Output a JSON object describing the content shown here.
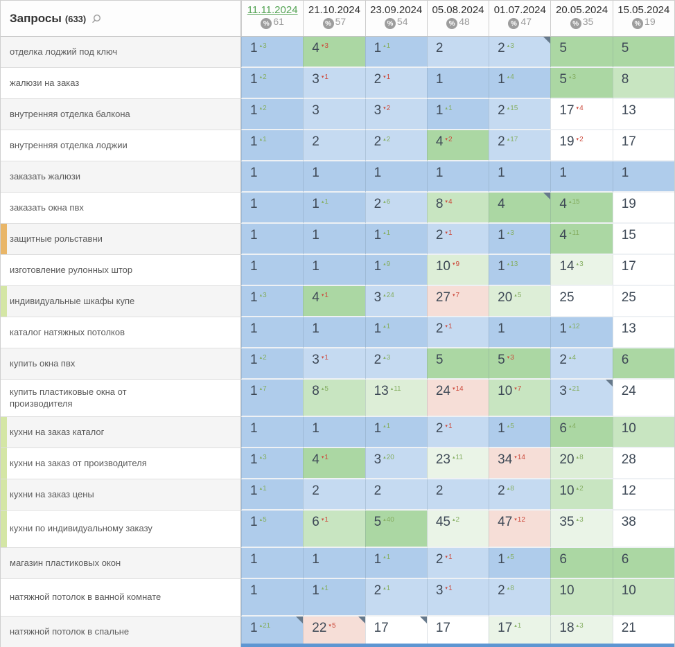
{
  "header": {
    "queries_label": "Запросы",
    "queries_count": "(633)",
    "dates": [
      {
        "label": "11.11.2024",
        "percent": "61",
        "active": true
      },
      {
        "label": "21.10.2024",
        "percent": "57",
        "active": false
      },
      {
        "label": "23.09.2024",
        "percent": "54",
        "active": false
      },
      {
        "label": "05.08.2024",
        "percent": "48",
        "active": false
      },
      {
        "label": "01.07.2024",
        "percent": "47",
        "active": false
      },
      {
        "label": "20.05.2024",
        "percent": "35",
        "active": false
      },
      {
        "label": "15.05.2024",
        "percent": "19",
        "active": false
      }
    ]
  },
  "icons": {
    "search": "search-icon",
    "percent": "%",
    "up_triangle": "▴",
    "down_triangle": "▾"
  },
  "colors": {
    "b1": "#afcceb",
    "b2": "#c5daf1",
    "g1": "#abd7a3",
    "g2": "#c8e5c1",
    "g3": "#ddeed7",
    "g4": "#eaf4e7",
    "r1": "#f6ded7",
    "w": "#ffffff",
    "sup_up": "#85ae62",
    "sup_down": "#cc4a3c",
    "active_date": "#55a455",
    "marker_orange": "#e9b668",
    "marker_green": "#d4e6a5",
    "scrollbar": "#5e96d2",
    "flag": "#66798b"
  },
  "rows": [
    {
      "query": "отделка лоджий под ключ",
      "marker": null,
      "tall": false,
      "cells": [
        {
          "v": "1",
          "d": "3",
          "u": 1,
          "bg": "b1"
        },
        {
          "v": "4",
          "d": "3",
          "u": 0,
          "bg": "g1"
        },
        {
          "v": "1",
          "d": "1",
          "u": 1,
          "bg": "b1"
        },
        {
          "v": "2",
          "bg": "b2"
        },
        {
          "v": "2",
          "d": "3",
          "u": 1,
          "bg": "b2",
          "f": 1
        },
        {
          "v": "5",
          "bg": "g1"
        },
        {
          "v": "5",
          "bg": "g1"
        }
      ]
    },
    {
      "query": "жалюзи на заказ",
      "marker": null,
      "tall": false,
      "cells": [
        {
          "v": "1",
          "d": "2",
          "u": 1,
          "bg": "b1"
        },
        {
          "v": "3",
          "d": "1",
          "u": 0,
          "bg": "b2"
        },
        {
          "v": "2",
          "d": "1",
          "u": 0,
          "bg": "b2"
        },
        {
          "v": "1",
          "bg": "b1"
        },
        {
          "v": "1",
          "d": "4",
          "u": 1,
          "bg": "b1"
        },
        {
          "v": "5",
          "d": "3",
          "u": 1,
          "bg": "g1"
        },
        {
          "v": "8",
          "bg": "g2"
        }
      ]
    },
    {
      "query": "внутренняя отделка балкона",
      "marker": null,
      "tall": false,
      "cells": [
        {
          "v": "1",
          "d": "2",
          "u": 1,
          "bg": "b1"
        },
        {
          "v": "3",
          "bg": "b2"
        },
        {
          "v": "3",
          "d": "2",
          "u": 0,
          "bg": "b2"
        },
        {
          "v": "1",
          "d": "1",
          "u": 1,
          "bg": "b1"
        },
        {
          "v": "2",
          "d": "15",
          "u": 1,
          "bg": "b2"
        },
        {
          "v": "17",
          "d": "4",
          "u": 0,
          "bg": "w"
        },
        {
          "v": "13",
          "bg": "w"
        }
      ]
    },
    {
      "query": "внутренняя отделка лоджии",
      "marker": null,
      "tall": false,
      "cells": [
        {
          "v": "1",
          "d": "1",
          "u": 1,
          "bg": "b1"
        },
        {
          "v": "2",
          "bg": "b2"
        },
        {
          "v": "2",
          "d": "2",
          "u": 1,
          "bg": "b2"
        },
        {
          "v": "4",
          "d": "2",
          "u": 0,
          "bg": "g1"
        },
        {
          "v": "2",
          "d": "17",
          "u": 1,
          "bg": "b2"
        },
        {
          "v": "19",
          "d": "2",
          "u": 0,
          "bg": "w"
        },
        {
          "v": "17",
          "bg": "w"
        }
      ]
    },
    {
      "query": "заказать жалюзи",
      "marker": null,
      "tall": false,
      "cells": [
        {
          "v": "1",
          "bg": "b1"
        },
        {
          "v": "1",
          "bg": "b1"
        },
        {
          "v": "1",
          "bg": "b1"
        },
        {
          "v": "1",
          "bg": "b1"
        },
        {
          "v": "1",
          "bg": "b1"
        },
        {
          "v": "1",
          "bg": "b1"
        },
        {
          "v": "1",
          "bg": "b1"
        }
      ]
    },
    {
      "query": "заказать окна пвх",
      "marker": null,
      "tall": false,
      "cells": [
        {
          "v": "1",
          "bg": "b1"
        },
        {
          "v": "1",
          "d": "1",
          "u": 1,
          "bg": "b1"
        },
        {
          "v": "2",
          "d": "6",
          "u": 1,
          "bg": "b2"
        },
        {
          "v": "8",
          "d": "4",
          "u": 0,
          "bg": "g2"
        },
        {
          "v": "4",
          "bg": "g1",
          "f": 1
        },
        {
          "v": "4",
          "d": "15",
          "u": 1,
          "bg": "g1"
        },
        {
          "v": "19",
          "bg": "w"
        }
      ]
    },
    {
      "query": "защитные рольставни",
      "marker": "orange",
      "tall": false,
      "cells": [
        {
          "v": "1",
          "bg": "b1"
        },
        {
          "v": "1",
          "bg": "b1"
        },
        {
          "v": "1",
          "d": "1",
          "u": 1,
          "bg": "b1"
        },
        {
          "v": "2",
          "d": "1",
          "u": 0,
          "bg": "b2"
        },
        {
          "v": "1",
          "d": "3",
          "u": 1,
          "bg": "b1"
        },
        {
          "v": "4",
          "d": "11",
          "u": 1,
          "bg": "g1"
        },
        {
          "v": "15",
          "bg": "w"
        }
      ]
    },
    {
      "query": "изготовление рулонных штор",
      "marker": null,
      "tall": false,
      "cells": [
        {
          "v": "1",
          "bg": "b1"
        },
        {
          "v": "1",
          "bg": "b1"
        },
        {
          "v": "1",
          "d": "9",
          "u": 1,
          "bg": "b1"
        },
        {
          "v": "10",
          "d": "9",
          "u": 0,
          "bg": "g3"
        },
        {
          "v": "1",
          "d": "13",
          "u": 1,
          "bg": "b1"
        },
        {
          "v": "14",
          "d": "3",
          "u": 1,
          "bg": "g4"
        },
        {
          "v": "17",
          "bg": "w"
        }
      ]
    },
    {
      "query": "индивидуальные шкафы купе",
      "marker": "green",
      "tall": false,
      "cells": [
        {
          "v": "1",
          "d": "3",
          "u": 1,
          "bg": "b1"
        },
        {
          "v": "4",
          "d": "1",
          "u": 0,
          "bg": "g1"
        },
        {
          "v": "3",
          "d": "24",
          "u": 1,
          "bg": "b2"
        },
        {
          "v": "27",
          "d": "7",
          "u": 0,
          "bg": "r1"
        },
        {
          "v": "20",
          "d": "5",
          "u": 1,
          "bg": "g3"
        },
        {
          "v": "25",
          "bg": "w"
        },
        {
          "v": "25",
          "bg": "w"
        }
      ]
    },
    {
      "query": "каталог натяжных потолков",
      "marker": null,
      "tall": false,
      "cells": [
        {
          "v": "1",
          "bg": "b1"
        },
        {
          "v": "1",
          "bg": "b1"
        },
        {
          "v": "1",
          "d": "1",
          "u": 1,
          "bg": "b1"
        },
        {
          "v": "2",
          "d": "1",
          "u": 0,
          "bg": "b2"
        },
        {
          "v": "1",
          "bg": "b1"
        },
        {
          "v": "1",
          "d": "12",
          "u": 1,
          "bg": "b1"
        },
        {
          "v": "13",
          "bg": "w"
        }
      ]
    },
    {
      "query": "купить окна пвх",
      "marker": null,
      "tall": false,
      "cells": [
        {
          "v": "1",
          "d": "2",
          "u": 1,
          "bg": "b1"
        },
        {
          "v": "3",
          "d": "1",
          "u": 0,
          "bg": "b2"
        },
        {
          "v": "2",
          "d": "3",
          "u": 1,
          "bg": "b2"
        },
        {
          "v": "5",
          "bg": "g1"
        },
        {
          "v": "5",
          "d": "3",
          "u": 0,
          "bg": "g1"
        },
        {
          "v": "2",
          "d": "4",
          "u": 1,
          "bg": "b2"
        },
        {
          "v": "6",
          "bg": "g1"
        }
      ]
    },
    {
      "query": "купить пластиковые окна от производителя",
      "marker": null,
      "tall": true,
      "cells": [
        {
          "v": "1",
          "d": "7",
          "u": 1,
          "bg": "b1"
        },
        {
          "v": "8",
          "d": "5",
          "u": 1,
          "bg": "g2"
        },
        {
          "v": "13",
          "d": "11",
          "u": 1,
          "bg": "g3"
        },
        {
          "v": "24",
          "d": "14",
          "u": 0,
          "bg": "r1"
        },
        {
          "v": "10",
          "d": "7",
          "u": 0,
          "bg": "g2"
        },
        {
          "v": "3",
          "d": "21",
          "u": 1,
          "bg": "b2",
          "f": 1
        },
        {
          "v": "24",
          "bg": "w"
        }
      ]
    },
    {
      "query": "кухни на заказ каталог",
      "marker": "green",
      "tall": false,
      "cells": [
        {
          "v": "1",
          "bg": "b1"
        },
        {
          "v": "1",
          "bg": "b1"
        },
        {
          "v": "1",
          "d": "1",
          "u": 1,
          "bg": "b1"
        },
        {
          "v": "2",
          "d": "1",
          "u": 0,
          "bg": "b2"
        },
        {
          "v": "1",
          "d": "5",
          "u": 1,
          "bg": "b1"
        },
        {
          "v": "6",
          "d": "4",
          "u": 1,
          "bg": "g1"
        },
        {
          "v": "10",
          "bg": "g2"
        }
      ]
    },
    {
      "query": "кухни на заказ от производителя",
      "marker": "green",
      "tall": false,
      "cells": [
        {
          "v": "1",
          "d": "3",
          "u": 1,
          "bg": "b1"
        },
        {
          "v": "4",
          "d": "1",
          "u": 0,
          "bg": "g1"
        },
        {
          "v": "3",
          "d": "20",
          "u": 1,
          "bg": "b2"
        },
        {
          "v": "23",
          "d": "11",
          "u": 1,
          "bg": "g4"
        },
        {
          "v": "34",
          "d": "14",
          "u": 0,
          "bg": "r1"
        },
        {
          "v": "20",
          "d": "8",
          "u": 1,
          "bg": "g3"
        },
        {
          "v": "28",
          "bg": "w"
        }
      ]
    },
    {
      "query": "кухни на заказ цены",
      "marker": "green",
      "tall": false,
      "cells": [
        {
          "v": "1",
          "d": "1",
          "u": 1,
          "bg": "b1"
        },
        {
          "v": "2",
          "bg": "b2"
        },
        {
          "v": "2",
          "bg": "b2"
        },
        {
          "v": "2",
          "bg": "b2"
        },
        {
          "v": "2",
          "d": "8",
          "u": 1,
          "bg": "b2"
        },
        {
          "v": "10",
          "d": "2",
          "u": 1,
          "bg": "g2"
        },
        {
          "v": "12",
          "bg": "w"
        }
      ]
    },
    {
      "query": "кухни по индивидуальному заказу",
      "marker": "green",
      "tall": true,
      "cells": [
        {
          "v": "1",
          "d": "5",
          "u": 1,
          "bg": "b1"
        },
        {
          "v": "6",
          "d": "1",
          "u": 0,
          "bg": "g2"
        },
        {
          "v": "5",
          "d": "40",
          "u": 1,
          "bg": "g1"
        },
        {
          "v": "45",
          "d": "2",
          "u": 1,
          "bg": "g4"
        },
        {
          "v": "47",
          "d": "12",
          "u": 0,
          "bg": "r1"
        },
        {
          "v": "35",
          "d": "3",
          "u": 1,
          "bg": "g4"
        },
        {
          "v": "38",
          "bg": "w"
        }
      ]
    },
    {
      "query": "магазин пластиковых окон",
      "marker": null,
      "tall": false,
      "cells": [
        {
          "v": "1",
          "bg": "b1"
        },
        {
          "v": "1",
          "bg": "b1"
        },
        {
          "v": "1",
          "d": "1",
          "u": 1,
          "bg": "b1"
        },
        {
          "v": "2",
          "d": "1",
          "u": 0,
          "bg": "b2"
        },
        {
          "v": "1",
          "d": "5",
          "u": 1,
          "bg": "b1"
        },
        {
          "v": "6",
          "bg": "g1"
        },
        {
          "v": "6",
          "bg": "g1"
        }
      ]
    },
    {
      "query": "натяжной потолок в ванной комнате",
      "marker": null,
      "tall": true,
      "cells": [
        {
          "v": "1",
          "bg": "b1"
        },
        {
          "v": "1",
          "d": "1",
          "u": 1,
          "bg": "b1"
        },
        {
          "v": "2",
          "d": "1",
          "u": 1,
          "bg": "b2"
        },
        {
          "v": "3",
          "d": "1",
          "u": 0,
          "bg": "b2"
        },
        {
          "v": "2",
          "d": "8",
          "u": 1,
          "bg": "b2"
        },
        {
          "v": "10",
          "bg": "g2"
        },
        {
          "v": "10",
          "bg": "g2"
        }
      ]
    },
    {
      "query": "натяжной потолок в спальне",
      "marker": null,
      "tall": false,
      "cells": [
        {
          "v": "1",
          "d": "21",
          "u": 1,
          "bg": "b1",
          "f": 1
        },
        {
          "v": "22",
          "d": "5",
          "u": 0,
          "bg": "r1",
          "f": 1
        },
        {
          "v": "17",
          "bg": "w",
          "f": 1
        },
        {
          "v": "17",
          "bg": "w"
        },
        {
          "v": "17",
          "d": "1",
          "u": 1,
          "bg": "g4"
        },
        {
          "v": "18",
          "d": "3",
          "u": 1,
          "bg": "g4"
        },
        {
          "v": "21",
          "bg": "w"
        }
      ]
    }
  ]
}
